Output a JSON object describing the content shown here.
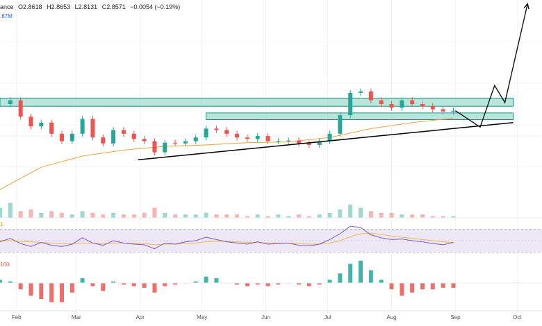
{
  "header": {
    "symbol_fragment": "ance",
    "open": "O2.8618",
    "high": "H2.8653",
    "low": "L2.8131",
    "close": "C2.8571",
    "change": "−0.0054 (−0.19%)",
    "volume_fragment": ".87M",
    "rsi_fragment": "1",
    "macd_fragment": "160"
  },
  "colors": {
    "up": "#26a69a",
    "down": "#ef5350",
    "zone_fill": "#7fd1c0",
    "zone_stroke": "#1e8f7a",
    "ma": "#f0a23a",
    "rsi_line": "#7e57c2",
    "rsi_band": "#ede7f6",
    "trend": "#000000",
    "vol_ma": "#5b8def"
  },
  "chart_data": {
    "type": "candlestick",
    "x_axis": {
      "tick_labels": [
        "Feb",
        "Mar",
        "Apr",
        "May",
        "Jun",
        "Jul",
        "Aug",
        "Sep",
        "Oct"
      ],
      "domain": [
        "2024-01-24",
        "2024-10-13"
      ]
    },
    "price_axis": {
      "ylim": [
        1.55,
        4.35
      ]
    },
    "close_series": {
      "dates": [
        "2024-01-24",
        "2024-01-29",
        "2024-02-03",
        "2024-02-08",
        "2024-02-13",
        "2024-02-18",
        "2024-02-23",
        "2024-02-28",
        "2024-03-04",
        "2024-03-09",
        "2024-03-14",
        "2024-03-19",
        "2024-03-24",
        "2024-03-29",
        "2024-04-03",
        "2024-04-08",
        "2024-04-13",
        "2024-04-18",
        "2024-04-23",
        "2024-04-28",
        "2024-05-03",
        "2024-05-08",
        "2024-05-13",
        "2024-05-18",
        "2024-05-23",
        "2024-05-28",
        "2024-06-02",
        "2024-06-07",
        "2024-06-12",
        "2024-06-17",
        "2024-06-22",
        "2024-06-27",
        "2024-07-02",
        "2024-07-07",
        "2024-07-12",
        "2024-07-17",
        "2024-07-22",
        "2024-07-27",
        "2024-08-01",
        "2024-08-06",
        "2024-08-11",
        "2024-08-16",
        "2024-08-21",
        "2024-08-26",
        "2024-08-31"
      ],
      "close": [
        2.95,
        3.0,
        2.78,
        2.65,
        2.7,
        2.55,
        2.45,
        2.55,
        2.75,
        2.5,
        2.42,
        2.6,
        2.55,
        2.48,
        2.45,
        2.3,
        2.43,
        2.42,
        2.45,
        2.5,
        2.62,
        2.6,
        2.55,
        2.5,
        2.48,
        2.52,
        2.45,
        2.45,
        2.46,
        2.42,
        2.4,
        2.45,
        2.55,
        2.8,
        3.1,
        3.12,
        3.0,
        2.95,
        2.9,
        3.0,
        2.95,
        2.92,
        2.88,
        2.85,
        2.86
      ]
    },
    "moving_average": {
      "dates": [
        "2024-01-24",
        "2024-02-13",
        "2024-03-04",
        "2024-03-24",
        "2024-04-13",
        "2024-05-03",
        "2024-05-23",
        "2024-06-12",
        "2024-07-02",
        "2024-07-22",
        "2024-08-11",
        "2024-08-31"
      ],
      "values": [
        1.8,
        2.1,
        2.25,
        2.33,
        2.38,
        2.4,
        2.43,
        2.44,
        2.5,
        2.62,
        2.7,
        2.76
      ]
    },
    "resistance_zone": {
      "low": 2.92,
      "high": 3.03,
      "from": "2024-01-24",
      "to": "2024-09-29"
    },
    "support_zone": {
      "low": 2.74,
      "high": 2.83,
      "from": "2024-05-03",
      "to": "2024-09-29"
    },
    "trendline": {
      "from": [
        "2024-03-31",
        2.2
      ],
      "to": [
        "2024-09-29",
        2.7
      ]
    },
    "projection_path": [
      [
        "2024-09-01",
        2.86
      ],
      [
        "2024-09-13",
        2.64
      ],
      [
        "2024-09-20",
        3.2
      ],
      [
        "2024-09-25",
        2.97
      ],
      [
        "2024-10-06",
        4.3
      ]
    ],
    "volume": {
      "dates": [
        "2024-01-24",
        "2024-01-29",
        "2024-02-03",
        "2024-02-08",
        "2024-02-13",
        "2024-02-18",
        "2024-02-23",
        "2024-02-28",
        "2024-03-04",
        "2024-03-09",
        "2024-03-14",
        "2024-03-19",
        "2024-03-24",
        "2024-03-29",
        "2024-04-03",
        "2024-04-08",
        "2024-04-13",
        "2024-04-18",
        "2024-04-23",
        "2024-04-28",
        "2024-05-03",
        "2024-05-08",
        "2024-05-13",
        "2024-05-18",
        "2024-05-23",
        "2024-05-28",
        "2024-06-02",
        "2024-06-07",
        "2024-06-12",
        "2024-06-17",
        "2024-06-22",
        "2024-06-27",
        "2024-07-02",
        "2024-07-07",
        "2024-07-12",
        "2024-07-17",
        "2024-07-22",
        "2024-07-27",
        "2024-08-01",
        "2024-08-06",
        "2024-08-11",
        "2024-08-16",
        "2024-08-21",
        "2024-08-26",
        "2024-08-31"
      ],
      "values": [
        0.6,
        0.9,
        0.4,
        0.5,
        0.3,
        0.4,
        0.3,
        0.2,
        0.4,
        0.3,
        0.2,
        0.3,
        0.2,
        0.2,
        0.3,
        0.6,
        0.3,
        0.2,
        0.2,
        0.2,
        0.3,
        0.2,
        0.2,
        0.2,
        0.1,
        0.2,
        0.1,
        0.2,
        0.1,
        0.2,
        0.1,
        0.2,
        0.3,
        0.5,
        0.8,
        0.6,
        0.4,
        0.3,
        0.3,
        0.2,
        0.2,
        0.2,
        0.1,
        0.1,
        0.1
      ]
    },
    "rsi": {
      "band": [
        30,
        70
      ],
      "values": [
        48,
        54,
        45,
        40,
        47,
        42,
        40,
        44,
        55,
        46,
        42,
        50,
        46,
        44,
        43,
        36,
        46,
        44,
        48,
        50,
        56,
        52,
        48,
        46,
        44,
        48,
        44,
        45,
        46,
        42,
        41,
        44,
        52,
        62,
        75,
        73,
        60,
        55,
        52,
        53,
        50,
        48,
        45,
        43,
        47
      ]
    },
    "rsi_ma": [
      50,
      50,
      49,
      48,
      47,
      46,
      45,
      45,
      46,
      46,
      45,
      46,
      46,
      45,
      45,
      43,
      44,
      44,
      45,
      46,
      48,
      49,
      49,
      48,
      47,
      47,
      46,
      46,
      46,
      45,
      44,
      44,
      46,
      50,
      57,
      62,
      63,
      61,
      58,
      56,
      54,
      52,
      50,
      48,
      47
    ],
    "macd_hist": [
      0.02,
      0.01,
      -0.04,
      -0.08,
      -0.1,
      -0.12,
      -0.12,
      -0.06,
      0.03,
      -0.02,
      -0.05,
      0.01,
      -0.01,
      -0.02,
      -0.03,
      -0.06,
      -0.02,
      -0.01,
      0.0,
      0.01,
      0.04,
      0.03,
      0.0,
      -0.01,
      -0.02,
      -0.01,
      -0.02,
      -0.01,
      0.0,
      -0.01,
      -0.02,
      -0.01,
      0.02,
      0.06,
      0.12,
      0.14,
      0.08,
      0.02,
      -0.04,
      -0.08,
      -0.06,
      -0.04,
      -0.04,
      -0.03,
      -0.03
    ]
  }
}
